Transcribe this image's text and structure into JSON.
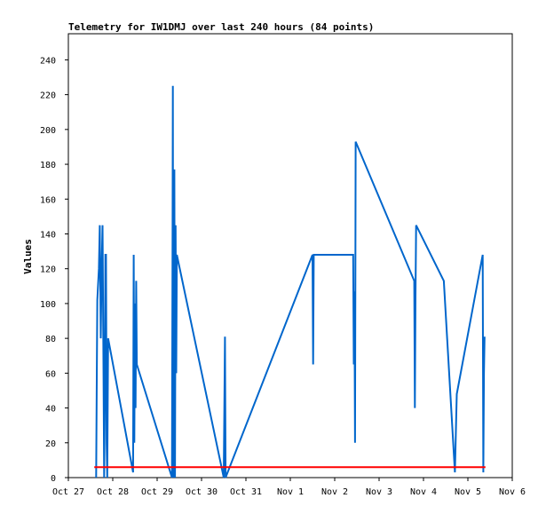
{
  "chart_data": {
    "type": "line",
    "title": "Telemetry for IW1DMJ over last 240 hours (84 points)",
    "xlabel": "",
    "ylabel": "Values",
    "xlim": [
      "2021-10-27T00:00",
      "2021-11-06T00:00"
    ],
    "ylim": [
      0,
      255
    ],
    "x_ticks": [
      "Oct 27",
      "Oct 28",
      "Oct 29",
      "Oct 30",
      "Oct 31",
      "Nov 1",
      "Nov 2",
      "Nov 3",
      "Nov 4",
      "Nov 5",
      "Nov 6"
    ],
    "y_ticks": [
      0,
      20,
      40,
      60,
      80,
      100,
      120,
      140,
      160,
      180,
      200,
      220,
      240
    ],
    "grid": false,
    "legend": "none",
    "colors": {
      "series_1": "#0066cc",
      "series_2": "#ff0000",
      "axis": "#000000"
    },
    "series": [
      {
        "color": "#0066cc",
        "points": [
          [
            "2021-10-27T15:00",
            0
          ],
          [
            "2021-10-27T15:20",
            48
          ],
          [
            "2021-10-27T15:40",
            102
          ],
          [
            "2021-10-27T16:30",
            120
          ],
          [
            "2021-10-27T17:00",
            145
          ],
          [
            "2021-10-27T17:30",
            80
          ],
          [
            "2021-10-27T18:00",
            120
          ],
          [
            "2021-10-27T18:30",
            145
          ],
          [
            "2021-10-27T19:00",
            60
          ],
          [
            "2021-10-27T19:20",
            0
          ],
          [
            "2021-10-27T19:40",
            40
          ],
          [
            "2021-10-27T20:00",
            128
          ],
          [
            "2021-10-27T20:20",
            128
          ],
          [
            "2021-10-27T20:40",
            20
          ],
          [
            "2021-10-27T21:00",
            0
          ],
          [
            "2021-10-27T21:30",
            80
          ],
          [
            "2021-10-28T11:00",
            3
          ],
          [
            "2021-10-28T11:20",
            128
          ],
          [
            "2021-10-28T11:40",
            20
          ],
          [
            "2021-10-28T12:00",
            100
          ],
          [
            "2021-10-28T12:20",
            40
          ],
          [
            "2021-10-28T12:40",
            113
          ],
          [
            "2021-10-28T13:00",
            65
          ],
          [
            "2021-10-29T08:00",
            0
          ],
          [
            "2021-10-29T08:20",
            145
          ],
          [
            "2021-10-29T08:30",
            225
          ],
          [
            "2021-10-29T08:40",
            0
          ],
          [
            "2021-10-29T09:00",
            145
          ],
          [
            "2021-10-29T09:20",
            177
          ],
          [
            "2021-10-29T09:40",
            0
          ],
          [
            "2021-10-29T10:00",
            145
          ],
          [
            "2021-10-29T10:20",
            60
          ],
          [
            "2021-10-29T10:40",
            128
          ],
          [
            "2021-10-30T12:00",
            0
          ],
          [
            "2021-10-30T12:20",
            40
          ],
          [
            "2021-10-30T12:40",
            81
          ],
          [
            "2021-10-30T13:00",
            0
          ],
          [
            "2021-11-01T12:00",
            128
          ],
          [
            "2021-11-01T12:20",
            65
          ],
          [
            "2021-11-01T12:40",
            128
          ],
          [
            "2021-11-02T10:00",
            128
          ],
          [
            "2021-11-02T10:20",
            65
          ],
          [
            "2021-11-02T10:40",
            107
          ],
          [
            "2021-11-02T11:00",
            20
          ],
          [
            "2021-11-02T11:20",
            193
          ],
          [
            "2021-11-03T19:00",
            113
          ],
          [
            "2021-11-03T19:20",
            40
          ],
          [
            "2021-11-03T19:40",
            104
          ],
          [
            "2021-11-03T20:00",
            145
          ],
          [
            "2021-11-04T11:00",
            113
          ],
          [
            "2021-11-04T17:00",
            3
          ],
          [
            "2021-11-04T18:00",
            48
          ],
          [
            "2021-11-05T08:00",
            128
          ],
          [
            "2021-11-05T08:20",
            3
          ],
          [
            "2021-11-05T08:40",
            60
          ],
          [
            "2021-11-05T09:00",
            81
          ]
        ]
      },
      {
        "color": "#ff0000",
        "points": [
          [
            "2021-10-27T14:00",
            6
          ],
          [
            "2021-11-05T09:30",
            6
          ]
        ]
      }
    ]
  }
}
